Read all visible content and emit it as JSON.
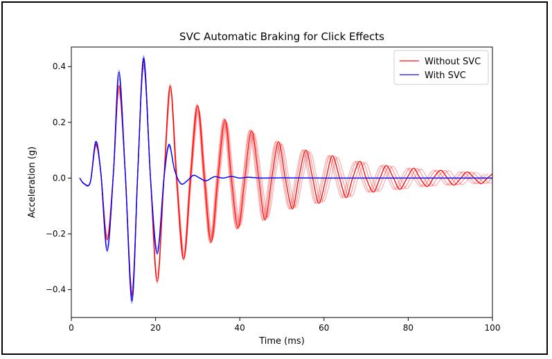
{
  "chart_data": {
    "type": "line",
    "title": "SVC Automatic Braking for Click Effects",
    "xlabel": "Time (ms)",
    "ylabel": "Acceleration (g)",
    "xlim": [
      0,
      100
    ],
    "ylim": [
      -0.5,
      0.47
    ],
    "x_ticks": [
      0,
      20,
      40,
      60,
      80,
      100
    ],
    "x_tick_labels": [
      "0",
      "20",
      "40",
      "60",
      "80",
      "100"
    ],
    "y_ticks": [
      -0.4,
      -0.2,
      0.0,
      0.2,
      0.4
    ],
    "y_tick_labels": [
      "−0.4",
      "−0.2",
      "0.0",
      "0.2",
      "0.4"
    ],
    "legend_position": "top-right",
    "series": [
      {
        "name": "Without SVC",
        "color": "#ff0000",
        "x": [
          2,
          3,
          4.5,
          5.8,
          7,
          8.5,
          10,
          11.3,
          12.8,
          14.4,
          15.8,
          17.2,
          18.8,
          20.4,
          22,
          23.5,
          25,
          26.7,
          28.3,
          30,
          31.6,
          33.2,
          34.8,
          36.5,
          38,
          39.6,
          41.2,
          42.8,
          44.5,
          46,
          47.6,
          49.2,
          50.8,
          52.5,
          54,
          55.7,
          57.3,
          58.8,
          60.5,
          62,
          63.7,
          65.3,
          66.8,
          68.5,
          70,
          71.7,
          73.3,
          74.8,
          76.5,
          78,
          79.7,
          81.3,
          82.8,
          84.5,
          86,
          87.7,
          89.3,
          90.8,
          92.5,
          94,
          95.7,
          97.3,
          98.8,
          100
        ],
        "values": [
          0,
          -0.02,
          -0.015,
          0.12,
          0.02,
          -0.22,
          0.02,
          0.33,
          0.02,
          -0.42,
          0.03,
          0.42,
          0.0,
          -0.37,
          0.0,
          0.33,
          0.0,
          -0.29,
          0.0,
          0.26,
          0.0,
          -0.23,
          0.0,
          0.21,
          0.0,
          -0.18,
          0.0,
          0.17,
          0.0,
          -0.15,
          0.0,
          0.13,
          0.0,
          -0.11,
          0.0,
          0.1,
          0.0,
          -0.09,
          0.0,
          0.08,
          0.0,
          -0.07,
          0.0,
          0.06,
          0.0,
          -0.05,
          0.0,
          0.045,
          0.0,
          -0.04,
          0.0,
          0.035,
          0.0,
          -0.03,
          0.0,
          0.028,
          0.0,
          -0.025,
          0.0,
          0.022,
          0.0,
          -0.02,
          0.0,
          0.015
        ]
      },
      {
        "name": "With SVC",
        "color": "#0000ff",
        "x": [
          2,
          3,
          4.5,
          5.8,
          7,
          8.5,
          10,
          11.3,
          12.8,
          14.4,
          15.8,
          17.2,
          18.8,
          20.4,
          22,
          23.2,
          24.5,
          26,
          27.5,
          29,
          30.5,
          32,
          34,
          36,
          38,
          40,
          42,
          45,
          50,
          60,
          70,
          80,
          90,
          100
        ],
        "values": [
          0,
          -0.02,
          -0.015,
          0.13,
          0.02,
          -0.26,
          0.02,
          0.38,
          0.02,
          -0.44,
          0.03,
          0.43,
          0.0,
          -0.27,
          0.0,
          0.12,
          0.03,
          -0.02,
          -0.01,
          0.01,
          0.0,
          -0.01,
          0.005,
          0.0,
          0.006,
          0.0,
          0.003,
          0.0,
          0.001,
          0.0,
          0.0,
          0.0,
          0.0,
          0.0
        ]
      }
    ]
  }
}
